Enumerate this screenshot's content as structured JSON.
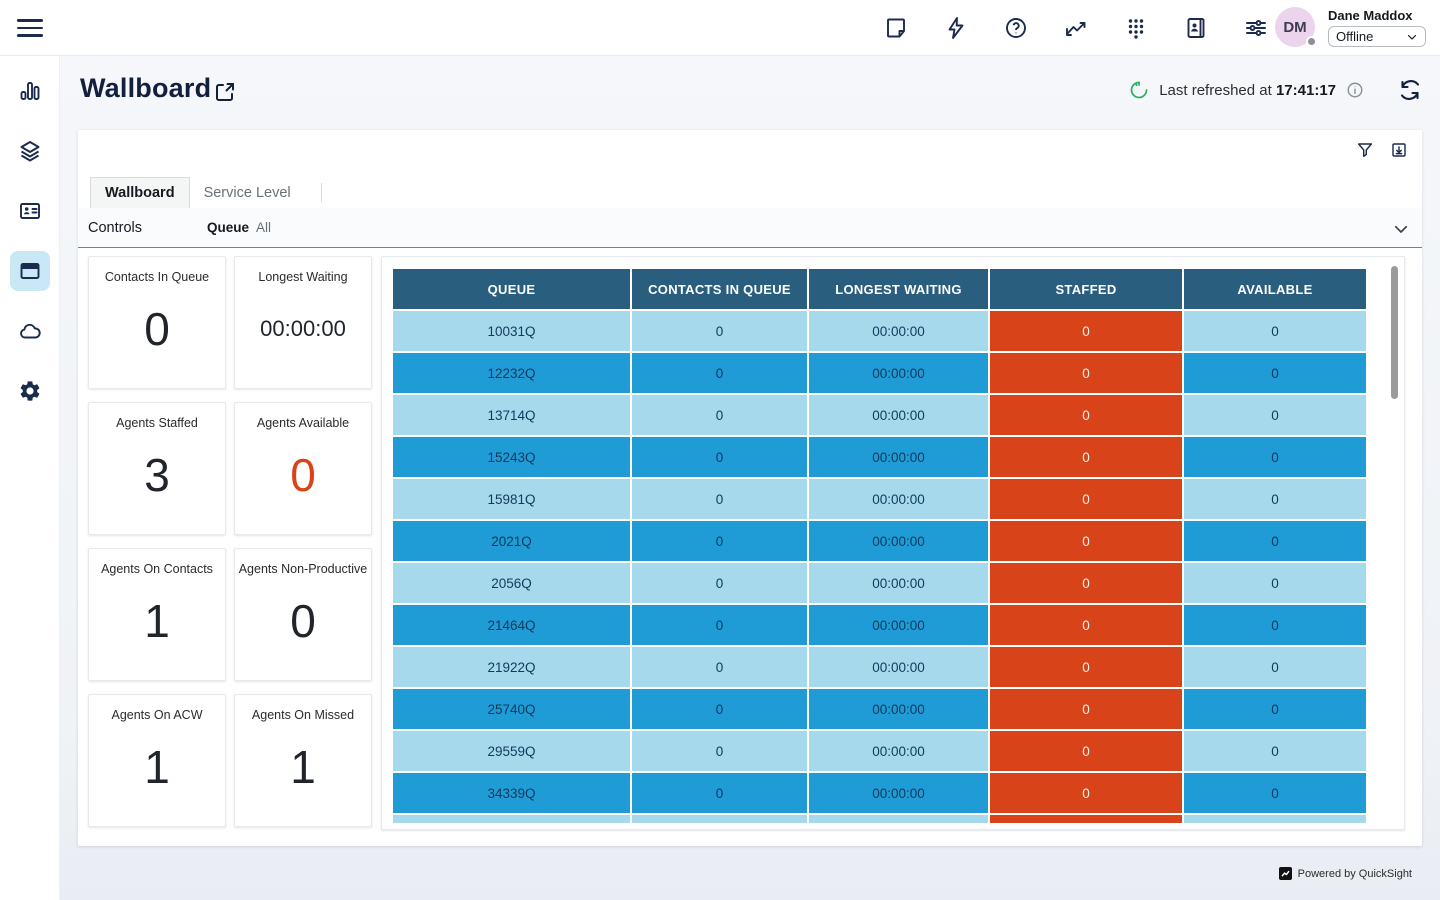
{
  "topbar": {
    "icons": [
      "note-icon",
      "lightning-icon",
      "help-icon",
      "line-chart-icon",
      "dialpad-icon",
      "contact-book-icon",
      "sliders-icon"
    ],
    "user": {
      "initials": "DM",
      "name": "Dane Maddox",
      "status": "Offline"
    }
  },
  "sidebar": {
    "items": [
      "bar-chart-icon",
      "layers-icon",
      "id-card-icon",
      "browser-icon",
      "cloud-icon",
      "gear-icon"
    ],
    "active_item": "browser-icon"
  },
  "header": {
    "title": "Wallboard",
    "refresh_prefix": "Last refreshed at",
    "refresh_time": "17:41:17"
  },
  "panel": {
    "tabs": [
      {
        "label": "Wallboard",
        "active": true
      },
      {
        "label": "Service Level",
        "active": false
      }
    ],
    "controls_label": "Controls",
    "queue_label": "Queue",
    "queue_value": "All",
    "tools": [
      "filter-icon",
      "export-icon"
    ]
  },
  "kpis": [
    {
      "label": "Contacts In Queue",
      "value": "0",
      "emphasis": false
    },
    {
      "label": "Longest Waiting",
      "value": "00:00:00",
      "emphasis": false
    },
    {
      "label": "Agents Staffed",
      "value": "3",
      "emphasis": false
    },
    {
      "label": "Agents Available",
      "value": "0",
      "emphasis": true
    },
    {
      "label": "Agents On Contacts",
      "value": "1",
      "emphasis": false
    },
    {
      "label": "Agents Non-Productive",
      "value": "0",
      "emphasis": false
    },
    {
      "label": "Agents On ACW",
      "value": "1",
      "emphasis": false
    },
    {
      "label": "Agents On Missed",
      "value": "1",
      "emphasis": false
    }
  ],
  "queue_table": {
    "columns": [
      "QUEUE",
      "CONTACTS IN QUEUE",
      "LONGEST WAITING",
      "STAFFED",
      "AVAILABLE"
    ],
    "rows": [
      {
        "queue": "10031Q",
        "contacts_in_queue": "0",
        "longest_waiting": "00:00:00",
        "staffed": "0",
        "available": "0"
      },
      {
        "queue": "12232Q",
        "contacts_in_queue": "0",
        "longest_waiting": "00:00:00",
        "staffed": "0",
        "available": "0"
      },
      {
        "queue": "13714Q",
        "contacts_in_queue": "0",
        "longest_waiting": "00:00:00",
        "staffed": "0",
        "available": "0"
      },
      {
        "queue": "15243Q",
        "contacts_in_queue": "0",
        "longest_waiting": "00:00:00",
        "staffed": "0",
        "available": "0"
      },
      {
        "queue": "15981Q",
        "contacts_in_queue": "0",
        "longest_waiting": "00:00:00",
        "staffed": "0",
        "available": "0"
      },
      {
        "queue": "2021Q",
        "contacts_in_queue": "0",
        "longest_waiting": "00:00:00",
        "staffed": "0",
        "available": "0"
      },
      {
        "queue": "2056Q",
        "contacts_in_queue": "0",
        "longest_waiting": "00:00:00",
        "staffed": "0",
        "available": "0"
      },
      {
        "queue": "21464Q",
        "contacts_in_queue": "0",
        "longest_waiting": "00:00:00",
        "staffed": "0",
        "available": "0"
      },
      {
        "queue": "21922Q",
        "contacts_in_queue": "0",
        "longest_waiting": "00:00:00",
        "staffed": "0",
        "available": "0"
      },
      {
        "queue": "25740Q",
        "contacts_in_queue": "0",
        "longest_waiting": "00:00:00",
        "staffed": "0",
        "available": "0"
      },
      {
        "queue": "29559Q",
        "contacts_in_queue": "0",
        "longest_waiting": "00:00:00",
        "staffed": "0",
        "available": "0"
      },
      {
        "queue": "34339Q",
        "contacts_in_queue": "0",
        "longest_waiting": "00:00:00",
        "staffed": "0",
        "available": "0"
      }
    ],
    "partial_row": {
      "queue": "",
      "contacts_in_queue": "",
      "longest_waiting": "",
      "staffed": "",
      "available": ""
    }
  },
  "footer": {
    "powered_by": "Powered by QuickSight"
  },
  "colors": {
    "table_header": "#2a5e7e",
    "row_light": "#a6d9eb",
    "row_dark": "#1f9cd6",
    "staffed_cell": "#d9431a",
    "accent_orange": "#d9431a",
    "refresh_green": "#2eaf62",
    "sidebar_active_bg": "#c9e8f6",
    "avatar_bg": "#ecd4ec"
  }
}
